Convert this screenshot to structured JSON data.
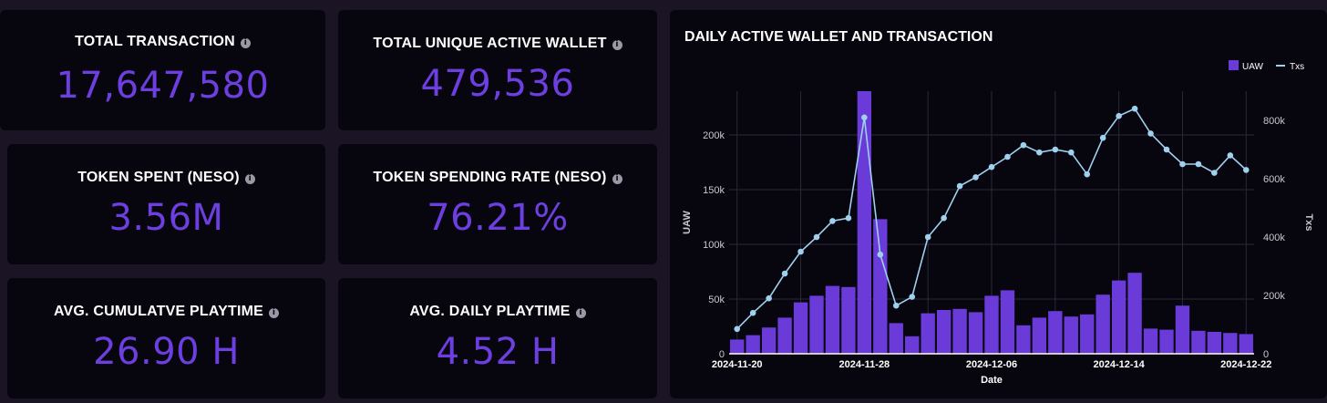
{
  "stats": [
    {
      "id": "total-transaction",
      "title": "TOTAL TRANSACTION",
      "value": "17,647,580"
    },
    {
      "id": "total-unique-active-wallet",
      "title": "TOTAL UNIQUE ACTIVE WALLET",
      "value": "479,536"
    },
    {
      "id": "token-spent",
      "title": "TOKEN SPENT (NESO)",
      "value": "3.56M"
    },
    {
      "id": "token-spending-rate",
      "title": "TOKEN SPENDING RATE (NESO)",
      "value": "76.21%"
    },
    {
      "id": "avg-cumulative-playtime",
      "title": "AVG. CUMULATVE PLAYTIME",
      "value": "26.90 H"
    },
    {
      "id": "avg-daily-playtime",
      "title": "AVG. DAILY PLAYTIME",
      "value": "4.52 H"
    }
  ],
  "info_icon": "info-icon",
  "colors": {
    "accent": "#6d3fe0",
    "bar": "#6a3bd9",
    "line": "#9fd0ee",
    "card": "#07060e",
    "page": "#1a1425"
  },
  "chart_data": {
    "type": "bar",
    "title": "DAILY ACTIVE WALLET AND TRANSACTION",
    "xlabel": "Date",
    "ylabel": "UAW",
    "y2label": "Txs",
    "legend": {
      "position": "top-right",
      "items": [
        "UAW",
        "Txs"
      ]
    },
    "grid": true,
    "x": [
      "2024-11-20",
      "2024-11-21",
      "2024-11-22",
      "2024-11-23",
      "2024-11-24",
      "2024-11-25",
      "2024-11-26",
      "2024-11-27",
      "2024-11-28",
      "2024-11-29",
      "2024-11-30",
      "2024-12-01",
      "2024-12-02",
      "2024-12-03",
      "2024-12-04",
      "2024-12-05",
      "2024-12-06",
      "2024-12-07",
      "2024-12-08",
      "2024-12-09",
      "2024-12-10",
      "2024-12-11",
      "2024-12-12",
      "2024-12-13",
      "2024-12-14",
      "2024-12-15",
      "2024-12-16",
      "2024-12-17",
      "2024-12-18",
      "2024-12-19",
      "2024-12-20",
      "2024-12-21",
      "2024-12-22"
    ],
    "x_tick_labels": [
      "2024-11-20",
      "2024-11-28",
      "2024-12-06",
      "2024-12-14",
      "2024-12-22"
    ],
    "ylim": [
      0,
      240000
    ],
    "y_ticks": [
      0,
      50000,
      100000,
      150000,
      200000
    ],
    "y_tick_labels": [
      "0",
      "50k",
      "100k",
      "150k",
      "200k"
    ],
    "y2lim": [
      0,
      900000
    ],
    "y2_ticks": [
      0,
      200000,
      400000,
      600000,
      800000
    ],
    "y2_tick_labels": [
      "0",
      "200k",
      "400k",
      "600k",
      "800k"
    ],
    "series": [
      {
        "name": "UAW",
        "type": "bar",
        "axis": "left",
        "values": [
          13000,
          17000,
          24000,
          33000,
          47000,
          53000,
          62000,
          61000,
          240000,
          123000,
          28000,
          16000,
          37000,
          40000,
          41000,
          38000,
          53000,
          58000,
          26000,
          33000,
          39000,
          34000,
          36000,
          54000,
          67000,
          74000,
          23000,
          22000,
          44000,
          21000,
          20000,
          19000,
          18000
        ]
      },
      {
        "name": "Txs",
        "type": "line",
        "axis": "right",
        "values": [
          85000,
          140000,
          190000,
          275000,
          350000,
          400000,
          455000,
          465000,
          810000,
          340000,
          165000,
          195000,
          400000,
          465000,
          575000,
          605000,
          640000,
          675000,
          715000,
          690000,
          700000,
          690000,
          615000,
          740000,
          815000,
          840000,
          755000,
          700000,
          650000,
          650000,
          620000,
          680000,
          630000
        ]
      }
    ]
  }
}
